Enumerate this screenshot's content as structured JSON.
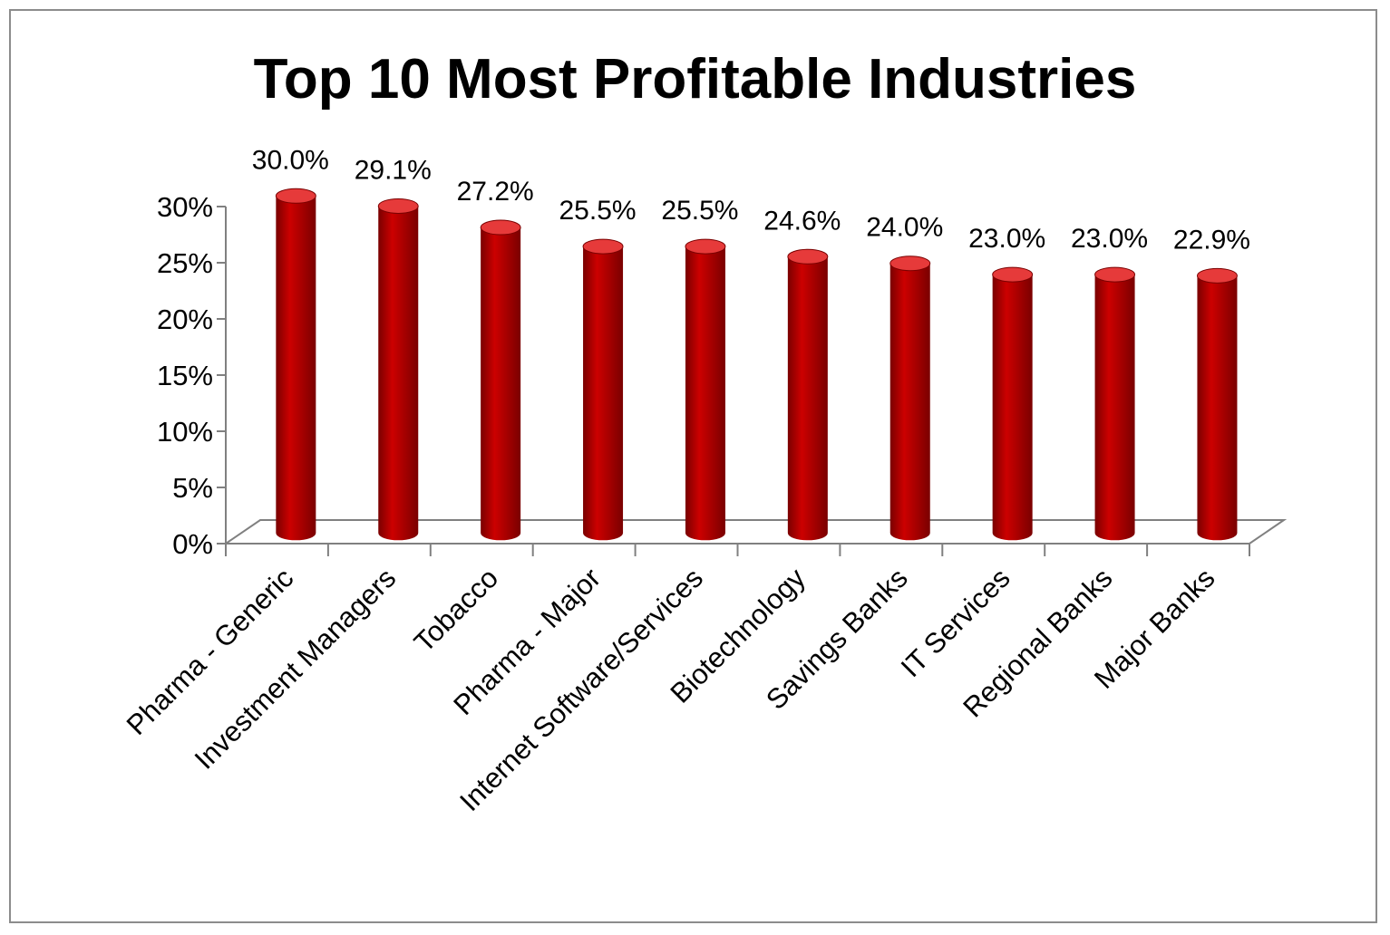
{
  "chart_data": {
    "type": "bar",
    "title": "Top 10 Most Profitable Industries",
    "xlabel": "",
    "ylabel": "",
    "categories": [
      "Pharma - Generic",
      "Investment Managers",
      "Tobacco",
      "Pharma - Major",
      "Internet Software/Services",
      "Biotechnology",
      "Savings Banks",
      "IT Services",
      "Regional Banks",
      "Major Banks"
    ],
    "values": [
      30.0,
      29.1,
      27.2,
      25.5,
      25.5,
      24.6,
      24.0,
      23.0,
      23.0,
      22.9
    ],
    "data_labels": [
      "30.0%",
      "29.1%",
      "27.2%",
      "25.5%",
      "25.5%",
      "24.6%",
      "24.0%",
      "23.0%",
      "23.0%",
      "22.9%"
    ],
    "ylim": [
      0,
      30
    ],
    "yticks": [
      0,
      5,
      10,
      15,
      20,
      25,
      30
    ],
    "ytick_labels": [
      "0%",
      "5%",
      "10%",
      "15%",
      "20%",
      "25%",
      "30%"
    ],
    "grid": false,
    "legend": "none",
    "style": "3d-cylinder",
    "bar_color": "#cc0000",
    "bar_dark": "#7a0000",
    "bar_light": "#e63a3a"
  }
}
